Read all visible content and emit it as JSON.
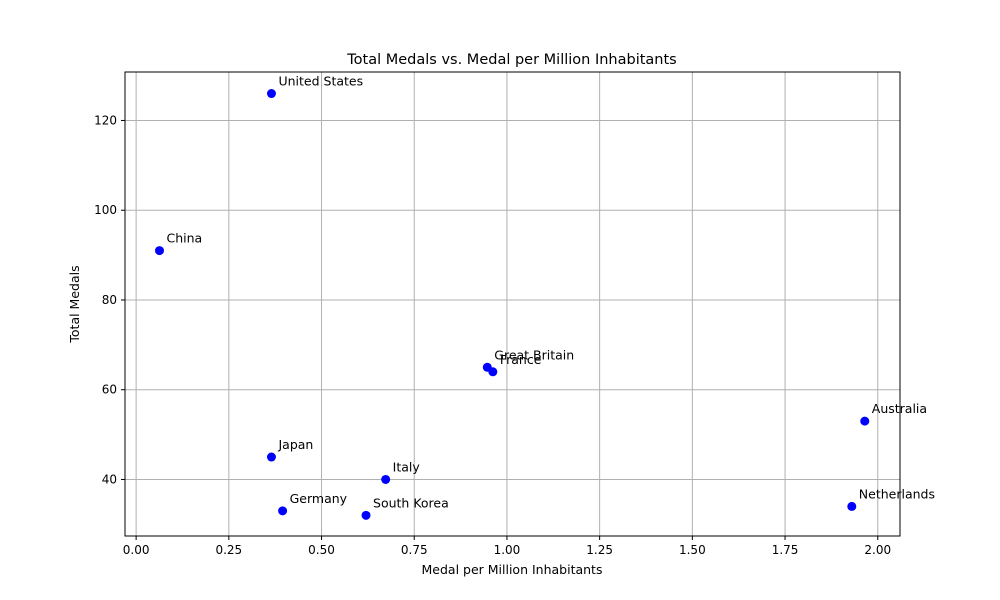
{
  "chart_data": {
    "type": "scatter",
    "title": "Total Medals vs. Medal per Million Inhabitants",
    "xlabel": "Medal per Million Inhabitants",
    "ylabel": "Total Medals",
    "xlim": [
      -0.03,
      2.06
    ],
    "ylim": [
      27.4,
      130.8
    ],
    "xticks": [
      0.0,
      0.25,
      0.5,
      0.75,
      1.0,
      1.25,
      1.5,
      1.75,
      2.0
    ],
    "xtick_labels": [
      "0.00",
      "0.25",
      "0.50",
      "0.75",
      "1.00",
      "1.25",
      "1.50",
      "1.75",
      "2.00"
    ],
    "yticks": [
      40,
      60,
      80,
      100,
      120
    ],
    "ytick_labels": [
      "40",
      "60",
      "80",
      "100",
      "120"
    ],
    "grid": true,
    "marker_color": "#0000ff",
    "points": [
      {
        "label": "United States",
        "x": 0.365,
        "y": 126
      },
      {
        "label": "China",
        "x": 0.063,
        "y": 91
      },
      {
        "label": "Great Britain",
        "x": 0.947,
        "y": 65
      },
      {
        "label": "France",
        "x": 0.962,
        "y": 64
      },
      {
        "label": "Australia",
        "x": 1.965,
        "y": 53
      },
      {
        "label": "Japan",
        "x": 0.365,
        "y": 45
      },
      {
        "label": "Italy",
        "x": 0.673,
        "y": 40
      },
      {
        "label": "Germany",
        "x": 0.395,
        "y": 33
      },
      {
        "label": "South Korea",
        "x": 0.62,
        "y": 32
      },
      {
        "label": "Netherlands",
        "x": 1.93,
        "y": 34
      }
    ]
  }
}
